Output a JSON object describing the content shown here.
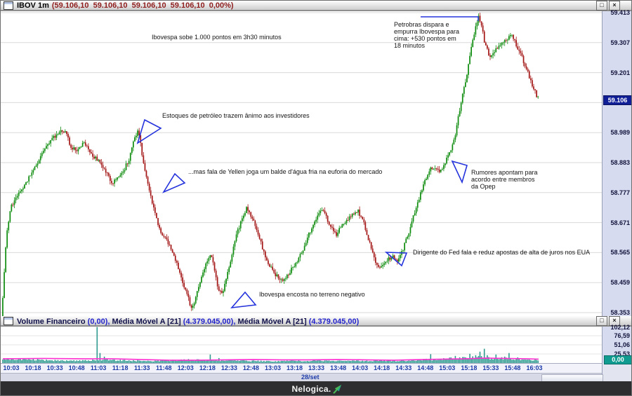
{
  "main_panel": {
    "title": "IBOV 1m",
    "values": "(59.106,10  59.106,10  59.106,10  59.106,10  0,00%)",
    "last_price": "59.106"
  },
  "volume_panel": {
    "segments": [
      {
        "text": "Volume Financeiro ",
        "kind": "label"
      },
      {
        "text": "(0,00), ",
        "kind": "value"
      },
      {
        "text": "Média Móvel A [21] ",
        "kind": "label"
      },
      {
        "text": "(4.379.045,00), ",
        "kind": "value"
      },
      {
        "text": "Média Móvel A [21] ",
        "kind": "label"
      },
      {
        "text": "(4.379.045,00)",
        "kind": "value"
      }
    ],
    "last_value": "0,00",
    "ma_value": "4.379.045,00"
  },
  "icons": {
    "maximize_glyph": "□",
    "close_glyph": "×"
  },
  "time_axis": {
    "labels": [
      "10:03",
      "10:18",
      "10:33",
      "10:48",
      "11:03",
      "11:18",
      "11:33",
      "11:48",
      "12:03",
      "12:18",
      "12:33",
      "12:48",
      "13:03",
      "13:18",
      "13:33",
      "13:48",
      "14:03",
      "14:18",
      "14:33",
      "14:48",
      "15:03",
      "15:18",
      "15:33",
      "15:48",
      "16:03"
    ],
    "date_label": "28/set"
  },
  "footer": {
    "brand": "Nelogica."
  },
  "chart_data": {
    "type": "candlestick",
    "symbol": "IBOV",
    "timeframe": "1m",
    "ylim": [
      58.353,
      59.413
    ],
    "price_axis": [
      "59.413",
      "59.307",
      "59.201",
      "58.989",
      "58.883",
      "58.777",
      "58.671",
      "58.565",
      "58.459",
      "58.353"
    ],
    "price_gridlines": [
      59.413,
      59.307,
      59.201,
      59.095,
      58.989,
      58.883,
      58.777,
      58.671,
      58.565,
      58.459,
      58.353
    ],
    "last_price": 59.106,
    "price_path": [
      [
        3,
        58.4
      ],
      [
        6,
        58.55
      ],
      [
        10,
        58.66
      ],
      [
        15,
        58.73
      ],
      [
        22,
        58.76
      ],
      [
        30,
        58.79
      ],
      [
        40,
        58.83
      ],
      [
        50,
        58.87
      ],
      [
        58,
        58.91
      ],
      [
        66,
        58.94
      ],
      [
        75,
        58.97
      ],
      [
        85,
        59.0
      ],
      [
        92,
        58.99
      ],
      [
        100,
        58.94
      ],
      [
        108,
        58.92
      ],
      [
        118,
        58.96
      ],
      [
        126,
        58.93
      ],
      [
        134,
        58.9
      ],
      [
        142,
        58.88
      ],
      [
        150,
        58.85
      ],
      [
        158,
        58.81
      ],
      [
        166,
        58.83
      ],
      [
        174,
        58.85
      ],
      [
        182,
        58.89
      ],
      [
        190,
        58.96
      ],
      [
        196,
        59.0
      ],
      [
        202,
        58.9
      ],
      [
        208,
        58.82
      ],
      [
        214,
        58.76
      ],
      [
        222,
        58.68
      ],
      [
        230,
        58.63
      ],
      [
        238,
        58.6
      ],
      [
        246,
        58.56
      ],
      [
        252,
        58.52
      ],
      [
        258,
        58.47
      ],
      [
        264,
        58.43
      ],
      [
        270,
        58.38
      ],
      [
        274,
        58.37
      ],
      [
        280,
        58.43
      ],
      [
        287,
        58.49
      ],
      [
        294,
        58.54
      ],
      [
        300,
        58.56
      ],
      [
        306,
        58.48
      ],
      [
        312,
        58.42
      ],
      [
        318,
        58.44
      ],
      [
        324,
        58.5
      ],
      [
        330,
        58.57
      ],
      [
        336,
        58.63
      ],
      [
        343,
        58.68
      ],
      [
        350,
        58.72
      ],
      [
        356,
        58.7
      ],
      [
        362,
        58.66
      ],
      [
        368,
        58.62
      ],
      [
        374,
        58.57
      ],
      [
        380,
        58.53
      ],
      [
        387,
        58.5
      ],
      [
        394,
        58.48
      ],
      [
        402,
        58.47
      ],
      [
        410,
        58.49
      ],
      [
        418,
        58.52
      ],
      [
        426,
        58.55
      ],
      [
        434,
        58.6
      ],
      [
        442,
        58.65
      ],
      [
        450,
        58.69
      ],
      [
        457,
        58.72
      ],
      [
        464,
        58.69
      ],
      [
        471,
        58.65
      ],
      [
        478,
        58.63
      ],
      [
        486,
        58.66
      ],
      [
        494,
        58.68
      ],
      [
        502,
        58.7
      ],
      [
        509,
        58.71
      ],
      [
        516,
        58.68
      ],
      [
        523,
        58.62
      ],
      [
        530,
        58.56
      ],
      [
        537,
        58.51
      ],
      [
        544,
        58.52
      ],
      [
        551,
        58.54
      ],
      [
        558,
        58.55
      ],
      [
        565,
        58.54
      ],
      [
        572,
        58.57
      ],
      [
        579,
        58.62
      ],
      [
        586,
        58.68
      ],
      [
        593,
        58.73
      ],
      [
        600,
        58.79
      ],
      [
        606,
        58.83
      ],
      [
        612,
        58.86
      ],
      [
        618,
        58.87
      ],
      [
        624,
        58.85
      ],
      [
        630,
        58.87
      ],
      [
        636,
        58.9
      ],
      [
        642,
        58.93
      ],
      [
        647,
        58.97
      ],
      [
        652,
        59.05
      ],
      [
        657,
        59.11
      ],
      [
        662,
        59.17
      ],
      [
        667,
        59.24
      ],
      [
        672,
        59.31
      ],
      [
        677,
        59.37
      ],
      [
        681,
        59.4
      ],
      [
        685,
        59.36
      ],
      [
        689,
        59.31
      ],
      [
        694,
        59.27
      ],
      [
        699,
        59.26
      ],
      [
        704,
        59.28
      ],
      [
        710,
        59.3
      ],
      [
        716,
        59.31
      ],
      [
        722,
        59.32
      ],
      [
        728,
        59.33
      ],
      [
        734,
        59.3
      ],
      [
        740,
        59.27
      ],
      [
        746,
        59.23
      ],
      [
        752,
        59.19
      ],
      [
        758,
        59.15
      ],
      [
        763,
        59.12
      ],
      [
        766,
        59.106
      ]
    ],
    "volume_axis": [
      "102,12",
      "76,59",
      "51,06",
      "25,53"
    ],
    "volume_axis_values": [
      102.12,
      76.59,
      51.06,
      25.53
    ],
    "volume_base": [
      [
        3,
        13
      ],
      [
        20,
        10
      ],
      [
        40,
        11
      ],
      [
        60,
        8
      ],
      [
        80,
        7
      ],
      [
        100,
        6
      ],
      [
        120,
        8
      ],
      [
        150,
        9
      ],
      [
        180,
        7
      ],
      [
        210,
        6
      ],
      [
        240,
        7
      ],
      [
        270,
        9
      ],
      [
        300,
        8
      ],
      [
        330,
        7
      ],
      [
        360,
        6
      ],
      [
        390,
        5
      ],
      [
        420,
        6
      ],
      [
        450,
        7
      ],
      [
        480,
        6
      ],
      [
        510,
        6
      ],
      [
        540,
        7
      ],
      [
        570,
        6
      ],
      [
        600,
        10
      ],
      [
        620,
        9
      ],
      [
        640,
        12
      ],
      [
        660,
        14
      ],
      [
        680,
        16
      ],
      [
        700,
        12
      ],
      [
        720,
        13
      ],
      [
        740,
        10
      ],
      [
        766,
        8
      ]
    ],
    "volume_spikes": [
      [
        137,
        101
      ],
      [
        142,
        28
      ],
      [
        147,
        18
      ],
      [
        298,
        24
      ],
      [
        311,
        14
      ],
      [
        612,
        25
      ],
      [
        648,
        20
      ],
      [
        668,
        26
      ],
      [
        676,
        22
      ],
      [
        682,
        32
      ],
      [
        688,
        40
      ],
      [
        692,
        22
      ],
      [
        706,
        24
      ],
      [
        718,
        18
      ],
      [
        724,
        28
      ],
      [
        736,
        16
      ]
    ],
    "ma_line": [
      [
        3,
        12
      ],
      [
        60,
        13
      ],
      [
        120,
        12
      ],
      [
        160,
        12
      ],
      [
        200,
        10
      ],
      [
        240,
        8
      ],
      [
        280,
        8
      ],
      [
        320,
        9
      ],
      [
        360,
        10
      ],
      [
        400,
        9
      ],
      [
        440,
        9
      ],
      [
        480,
        10
      ],
      [
        520,
        9
      ],
      [
        560,
        8
      ],
      [
        600,
        10
      ],
      [
        630,
        11
      ],
      [
        660,
        12
      ],
      [
        690,
        14
      ],
      [
        720,
        13
      ],
      [
        750,
        12
      ],
      [
        766,
        11
      ]
    ],
    "annotations": [
      {
        "x": 215,
        "y": 47,
        "text": "Ibovespa sobe 1.000 pontos em 3h30 minutos"
      },
      {
        "x": 560,
        "y": 29,
        "text": "Petrobras dispara e\nempurra Ibovespa para\ncima: +530 pontos em\n18 minutos"
      },
      {
        "x": 230,
        "y": 159,
        "text": "Estoques de petróleo trazem ânimo aos investidores"
      },
      {
        "x": 267,
        "y": 239,
        "text": "...mas fala de Yellen joga um balde d'água fria na euforia do mercado"
      },
      {
        "x": 670,
        "y": 240,
        "text": "Rumores apontam para\nacordo entre membros\nda Opep"
      },
      {
        "x": 587,
        "y": 354,
        "text": "Dirigente do Fed fala e reduz apostas de alta de juros nos EUA"
      },
      {
        "x": 368,
        "y": 414,
        "text": "Ibovespa encosta no terreno negativo"
      }
    ],
    "triangles": [
      [
        [
          205,
          170
        ],
        [
          228,
          182
        ],
        [
          195,
          203
        ]
      ],
      [
        [
          248,
          247
        ],
        [
          262,
          260
        ],
        [
          232,
          273
        ]
      ],
      [
        [
          643,
          229
        ],
        [
          664,
          235
        ],
        [
          657,
          259
        ]
      ],
      [
        [
          549,
          359
        ],
        [
          578,
          360
        ],
        [
          571,
          378
        ]
      ],
      [
        [
          348,
          416
        ],
        [
          363,
          434
        ],
        [
          329,
          438
        ]
      ]
    ],
    "pointer_line": [
      [
        598,
        23
      ],
      [
        680,
        23
      ],
      [
        680,
        29
      ]
    ],
    "colors": {
      "candle_up": "#0d8b0d",
      "candle_down": "#a31515",
      "grid": "#dadada",
      "volume_bar": "#2f9a8f",
      "ma_line": "#ff2fd0",
      "annotation_blue": "#2433dc",
      "price_badge_bg": "#111f96",
      "volume_badge_bg": "#0f9b8f"
    }
  }
}
